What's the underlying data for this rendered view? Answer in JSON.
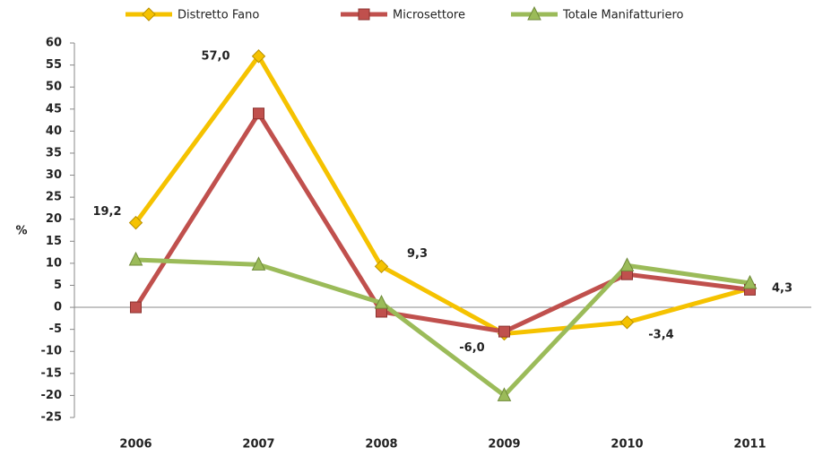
{
  "chart_data": {
    "type": "line",
    "y_label": "%",
    "categories": [
      "2006",
      "2007",
      "2008",
      "2009",
      "2010",
      "2011"
    ],
    "series": [
      {
        "name": "Distretto Fano",
        "color": "#f5c200",
        "marker": "diamond",
        "values": [
          19.2,
          57.0,
          9.3,
          -6.0,
          -3.4,
          4.3
        ],
        "value_labels": [
          "19,2",
          "57,0",
          "9,3",
          "-6,0",
          "-3,4",
          "4,3"
        ]
      },
      {
        "name": "Microsettore",
        "color": "#c0504d",
        "marker": "square",
        "values": [
          0,
          44,
          -1,
          -5.5,
          7.5,
          4
        ]
      },
      {
        "name": "Totale Manifatturiero",
        "color": "#9bbb59",
        "marker": "triangle",
        "values": [
          10.8,
          9.7,
          1,
          -20,
          9.5,
          5.5
        ]
      }
    ],
    "ylim": [
      -25,
      60
    ],
    "yticks": [
      -25,
      -20,
      -15,
      -10,
      -5,
      0,
      5,
      10,
      15,
      20,
      25,
      30,
      35,
      40,
      45,
      50,
      55,
      60
    ],
    "grid": false
  }
}
